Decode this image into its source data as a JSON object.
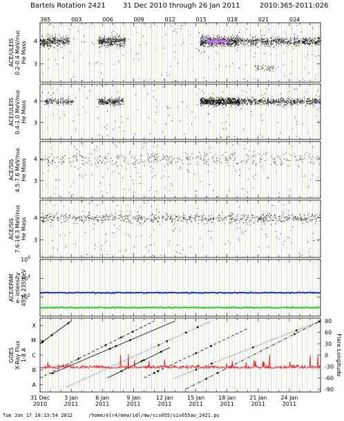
{
  "header": {
    "title": "Bartels Rotation 2421",
    "date_range": "31 Dec 2010 through 26 Jan 2011",
    "doy_range": "2010:365-2011:026"
  },
  "footer": {
    "timestamp": "Tue Jan 17 18:13:54 2012",
    "path": "/home/elr4/mew/idl/mw/sis055/sis055ao_2421.ps"
  },
  "colors": {
    "background": "#ffffff",
    "stripe_yellow": "#f4f2a8",
    "stripe_blue": "#bcd0ee",
    "ace_blue": "#1530c0",
    "ace_green": "#20d020",
    "goes_red": "#e81818",
    "highlight_magenta": "#d070ff"
  },
  "chart_data": [
    {
      "type": "scatter",
      "panel": "uleis-0.2-0.4",
      "ylabel": [
        "ACE/ULEIS",
        "0.2-0.4 MeV/nuc",
        "He Mass"
      ],
      "ylim": [
        2.2,
        4.8
      ],
      "yticks": [
        "3",
        "4"
      ],
      "doy_ticks": [
        "365",
        "003",
        "006",
        "009",
        "012",
        "015",
        "018",
        "021",
        "024"
      ],
      "clusters": [
        {
          "start_day": 0.0,
          "end_day": 1.4,
          "center": 4.0,
          "spread": 0.18,
          "density": 120
        },
        {
          "start_day": 1.4,
          "end_day": 2.8,
          "center": 4.0,
          "spread": 0.14,
          "density": 80
        },
        {
          "start_day": 5.6,
          "end_day": 8.2,
          "center": 4.0,
          "spread": 0.16,
          "density": 120
        },
        {
          "start_day": 15.4,
          "end_day": 19.0,
          "center": 4.0,
          "spread": 0.15,
          "density": 140
        },
        {
          "start_day": 19.0,
          "end_day": 27.0,
          "center": 4.0,
          "spread": 0.14,
          "density": 70
        },
        {
          "start_day": 20.6,
          "end_day": 22.6,
          "center": 2.85,
          "spread": 0.1,
          "density": 20
        }
      ],
      "highlight": {
        "start_day": 16.0,
        "end_day": 18.0,
        "value": 4.0
      }
    },
    {
      "type": "scatter",
      "panel": "uleis-0.4-1.0",
      "ylabel": [
        "ACE/ULEIS",
        "0.4-1.0 MeV/nuc",
        "He Mass"
      ],
      "ylim": [
        2.2,
        4.8
      ],
      "yticks": [
        "3",
        "4"
      ],
      "clusters": [
        {
          "start_day": 0.4,
          "end_day": 3.2,
          "center": 4.0,
          "spread": 0.1,
          "density": 50
        },
        {
          "start_day": 5.6,
          "end_day": 8.0,
          "center": 4.0,
          "spread": 0.12,
          "density": 90
        },
        {
          "start_day": 15.4,
          "end_day": 19.2,
          "center": 4.0,
          "spread": 0.13,
          "density": 160
        },
        {
          "start_day": 19.2,
          "end_day": 27.0,
          "center": 4.0,
          "spread": 0.12,
          "density": 60
        }
      ]
    },
    {
      "type": "scatter",
      "panel": "sis-4.5-7.6",
      "ylabel": [
        "ACE/SIS",
        "4.5-7.6 MeV/nuc",
        "He Mass"
      ],
      "ylim": [
        2.2,
        4.8
      ],
      "yticks": [
        "3",
        "4"
      ],
      "clusters": [
        {
          "start_day": 0.0,
          "end_day": 27.0,
          "center": 4.0,
          "spread": 0.22,
          "density": 12
        }
      ]
    },
    {
      "type": "scatter",
      "panel": "sis-7.6-16.3",
      "ylabel": [
        "ACE/SIS",
        "7.6-16.3 MeV/nuc",
        "He Mass"
      ],
      "ylim": [
        2.2,
        4.8
      ],
      "yticks": [
        "3",
        "4"
      ],
      "clusters": [
        {
          "start_day": 0.0,
          "end_day": 27.0,
          "center": 4.0,
          "spread": 0.16,
          "density": 24
        }
      ]
    },
    {
      "type": "line",
      "panel": "epam",
      "ylabel": [
        "ACE/EPAM",
        "e- intensity",
        "45 & 235 keV"
      ],
      "yscale": "log",
      "ylim": [
        1,
        1000000
      ],
      "yticks": [
        "10^2",
        "10^4",
        "10^6"
      ],
      "series": [
        {
          "color": "blue",
          "level": 300
        },
        {
          "color": "green",
          "level": 8
        }
      ]
    },
    {
      "type": "line",
      "panel": "goes",
      "ylabel": [
        "GOES",
        "X-Ray Flux",
        "1-8 A"
      ],
      "left_ticks": [
        "A",
        "B",
        "C",
        "M",
        "X"
      ],
      "right_label": "Flare Longitude",
      "right_ticks": [
        "90",
        "60",
        "30",
        "0",
        "-30",
        "-60",
        "-90"
      ],
      "xray_class_level": 1.6,
      "flare_longitude_tracks": [
        {
          "start_day": 0.0,
          "start_lon": 30,
          "end_day": 3.0,
          "end_lon": 90,
          "style": "solid"
        },
        {
          "start_day": 0.0,
          "start_lon": -60,
          "end_day": 11.0,
          "end_lon": 90,
          "style": "dashed"
        },
        {
          "start_day": 1.0,
          "start_lon": -50,
          "end_day": 13.0,
          "end_lon": 90,
          "style": "solid"
        },
        {
          "start_day": 2.5,
          "start_lon": -85,
          "end_day": 16.5,
          "end_lon": 90,
          "style": "dotted"
        },
        {
          "start_day": 6.5,
          "start_lon": -60,
          "end_day": 12.5,
          "end_lon": 20,
          "style": "solid"
        },
        {
          "start_day": 10.0,
          "start_lon": -60,
          "end_day": 20.0,
          "end_lon": 70,
          "style": "dashed"
        },
        {
          "start_day": 13.0,
          "start_lon": -60,
          "end_day": 27.0,
          "end_lon": 90,
          "style": "dotted"
        },
        {
          "start_day": 14.0,
          "start_lon": -90,
          "end_day": 27.0,
          "end_lon": 90,
          "style": "dashdot"
        }
      ],
      "x_tick_labels": [
        {
          "day": 0,
          "date": "31 Dec",
          "year": "2010"
        },
        {
          "day": 3,
          "date": "3 Jan",
          "year": "2011"
        },
        {
          "day": 6,
          "date": "6 Jan",
          "year": "2011"
        },
        {
          "day": 9,
          "date": "9 Jan",
          "year": "2011"
        },
        {
          "day": 12,
          "date": "12 Jan",
          "year": "2011"
        },
        {
          "day": 15,
          "date": "15 Jan",
          "year": "2011"
        },
        {
          "day": 18,
          "date": "18 Jan",
          "year": "2011"
        },
        {
          "day": 21,
          "date": "21 Jan",
          "year": "2011"
        },
        {
          "day": 24,
          "date": "24 Jan",
          "year": "2011"
        }
      ]
    }
  ]
}
